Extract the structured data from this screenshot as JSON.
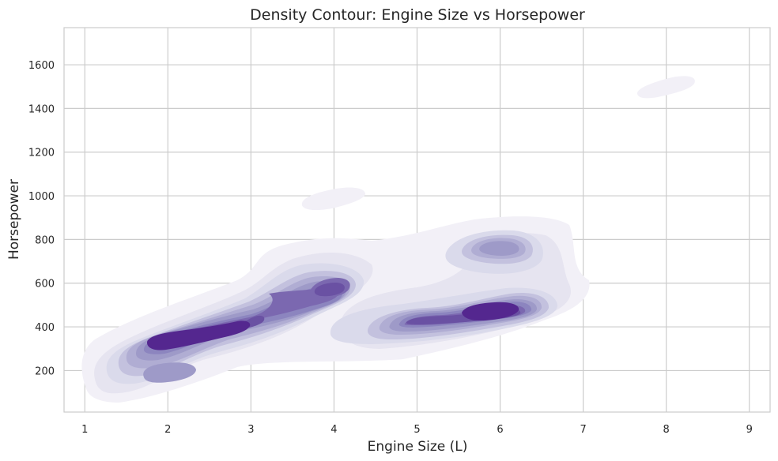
{
  "chart_data": {
    "type": "density_contour",
    "title": "Density Contour: Engine Size vs Horsepower",
    "xlabel": "Engine Size (L)",
    "ylabel": "Horsepower",
    "xlim": [
      0.75,
      9.25
    ],
    "ylim": [
      10,
      1770
    ],
    "xticks": [
      1,
      2,
      3,
      4,
      5,
      6,
      7,
      8,
      9
    ],
    "yticks": [
      200,
      400,
      600,
      800,
      1000,
      1200,
      1400,
      1600
    ],
    "grid": true,
    "colormap": "Purples",
    "levels": [
      "#f2f0f7",
      "#e6e4f0",
      "#dadaeb",
      "#c3c1de",
      "#b0add3",
      "#9e9ac8",
      "#8c85bf",
      "#7b68b0",
      "#6a51a3",
      "#54278f"
    ],
    "density_peaks": [
      {
        "x": 2.1,
        "y": 300,
        "relative_density": 1.0
      },
      {
        "x": 2.9,
        "y": 410,
        "relative_density": 0.95
      },
      {
        "x": 6.0,
        "y": 470,
        "relative_density": 1.0
      },
      {
        "x": 5.1,
        "y": 405,
        "relative_density": 0.85
      },
      {
        "x": 4.0,
        "y": 580,
        "relative_density": 0.9
      },
      {
        "x": 2.0,
        "y": 170,
        "relative_density": 0.6
      },
      {
        "x": 6.0,
        "y": 770,
        "relative_density": 0.5
      },
      {
        "x": 4.0,
        "y": 990,
        "relative_density": 0.1
      },
      {
        "x": 8.0,
        "y": 1500,
        "relative_density": 0.1
      }
    ]
  }
}
